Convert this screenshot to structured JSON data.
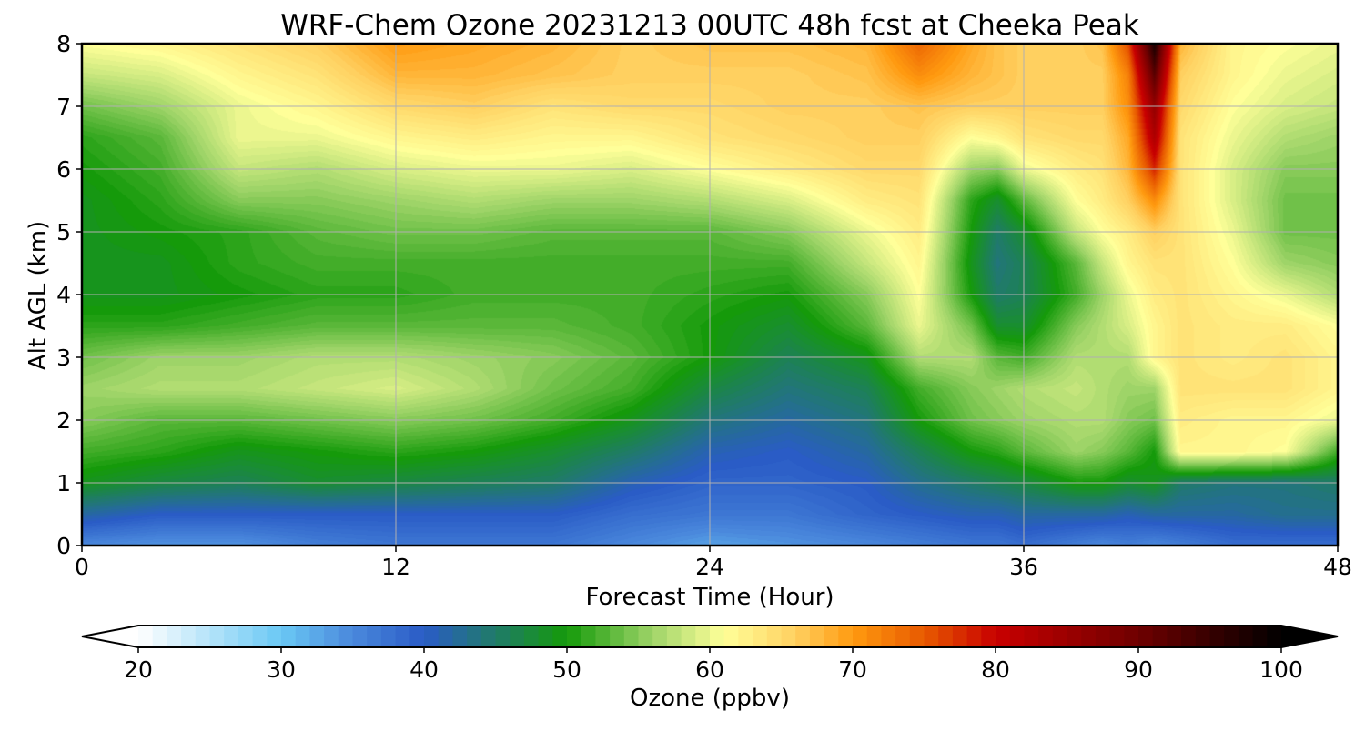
{
  "chart_data": {
    "type": "heatmap",
    "title": "WRF-Chem Ozone  20231213 00UTC 48h fcst at Cheeka Peak",
    "xlabel": "Forecast Time (Hour)",
    "ylabel": "Alt AGL (km)",
    "xlim": [
      0,
      48
    ],
    "ylim": [
      0,
      8
    ],
    "xticks": [
      "0",
      "12",
      "24",
      "36",
      "48"
    ],
    "yticks": [
      "0",
      "1",
      "2",
      "3",
      "4",
      "5",
      "6",
      "7",
      "8"
    ],
    "grid": true,
    "colorbar": {
      "label": "Ozone  (ppbv)",
      "min": 20,
      "max": 100,
      "ticks": [
        "20",
        "30",
        "40",
        "50",
        "60",
        "70",
        "80",
        "90",
        "100"
      ],
      "extend": "both",
      "colors": [
        "#ffffff",
        "#6ac8f4",
        "#4a88dc",
        "#2a5cc6",
        "#159a0a",
        "#9ed468",
        "#ffff99",
        "#ffd060",
        "#ff9a10",
        "#e85a00",
        "#c80000",
        "#6e0000",
        "#000000"
      ],
      "color_values": [
        20,
        30,
        35,
        40,
        50,
        56,
        61,
        66,
        70,
        75,
        80,
        90,
        100
      ]
    },
    "x": [
      0,
      3,
      6,
      9,
      12,
      15,
      18,
      21,
      24,
      27,
      30,
      32,
      34,
      35,
      36,
      38,
      39,
      40,
      41,
      42,
      44,
      46,
      48
    ],
    "y": [
      0,
      0.5,
      1,
      1.5,
      2,
      2.5,
      3,
      3.5,
      4,
      4.5,
      5,
      5.5,
      6,
      6.5,
      7,
      7.5,
      8
    ],
    "z": [
      [
        35,
        34,
        34,
        36,
        37,
        37,
        37,
        35,
        33,
        34,
        35,
        36,
        37,
        37,
        38,
        36,
        35,
        36,
        35,
        36,
        38,
        38,
        38
      ],
      [
        42,
        40,
        40,
        40,
        40,
        40,
        40,
        38,
        37,
        37,
        39,
        40,
        41,
        41,
        42,
        42,
        42,
        41,
        42,
        42,
        42,
        43,
        43
      ],
      [
        49,
        47,
        46,
        48,
        47,
        46,
        45,
        41,
        39,
        39,
        40,
        43,
        45,
        46,
        47,
        50,
        50,
        48,
        49,
        45,
        44,
        44,
        45
      ],
      [
        52,
        51,
        49,
        50,
        51,
        50,
        48,
        45,
        41,
        40,
        42,
        46,
        50,
        51,
        53,
        56,
        55,
        53,
        50,
        62,
        62,
        61,
        52
      ],
      [
        55,
        53,
        53,
        54,
        55,
        54,
        52,
        49,
        44,
        42,
        44,
        50,
        54,
        55,
        56,
        57,
        57,
        55,
        54,
        63,
        62,
        62,
        60
      ],
      [
        56,
        57,
        57,
        58,
        59,
        57,
        54,
        52,
        47,
        44,
        46,
        52,
        55,
        56,
        57,
        58,
        57,
        56,
        56,
        64,
        64,
        64,
        62
      ],
      [
        54,
        56,
        56,
        57,
        57,
        56,
        55,
        53,
        50,
        46,
        49,
        57,
        57,
        53,
        52,
        57,
        57,
        57,
        62,
        64,
        63,
        64,
        62
      ],
      [
        51,
        51,
        52,
        53,
        53,
        53,
        53,
        52,
        50,
        48,
        53,
        60,
        54,
        48,
        48,
        55,
        57,
        59,
        62,
        64,
        63,
        63,
        61
      ],
      [
        49,
        49,
        50,
        51,
        51,
        52,
        52,
        52,
        51,
        50,
        55,
        61,
        50,
        45,
        46,
        52,
        56,
        60,
        63,
        64,
        62,
        60,
        57
      ],
      [
        49,
        49,
        51,
        52,
        52,
        52,
        52,
        52,
        52,
        52,
        58,
        62,
        49,
        44,
        46,
        53,
        58,
        62,
        64,
        64,
        61,
        56,
        55
      ],
      [
        49,
        50,
        51,
        53,
        54,
        54,
        53,
        53,
        53,
        55,
        60,
        63,
        50,
        45,
        48,
        58,
        61,
        63,
        66,
        64,
        60,
        54,
        54
      ],
      [
        49,
        51,
        55,
        55,
        56,
        57,
        56,
        56,
        57,
        59,
        63,
        64,
        51,
        48,
        53,
        61,
        63,
        66,
        71,
        64,
        59,
        54,
        54
      ],
      [
        50,
        52,
        58,
        57,
        59,
        60,
        60,
        59,
        61,
        63,
        65,
        65,
        56,
        55,
        60,
        63,
        64,
        68,
        78,
        64,
        59,
        55,
        55
      ],
      [
        51,
        53,
        60,
        60,
        62,
        63,
        62,
        62,
        64,
        65,
        66,
        66,
        61,
        62,
        64,
        65,
        65,
        69,
        83,
        64,
        60,
        57,
        56
      ],
      [
        54,
        56,
        60,
        62,
        65,
        66,
        64,
        65,
        65,
        66,
        66,
        67,
        66,
        66,
        66,
        66,
        66,
        71,
        86,
        65,
        61,
        59,
        58
      ],
      [
        58,
        59,
        62,
        64,
        68,
        68,
        67,
        66,
        66,
        66,
        67,
        71,
        68,
        67,
        66,
        66,
        66,
        72,
        92,
        66,
        62,
        60,
        59
      ],
      [
        61,
        62,
        64,
        66,
        70,
        69,
        68,
        66,
        67,
        67,
        68,
        74,
        69,
        67,
        66,
        66,
        67,
        76,
        98,
        68,
        62,
        61,
        60
      ]
    ]
  }
}
